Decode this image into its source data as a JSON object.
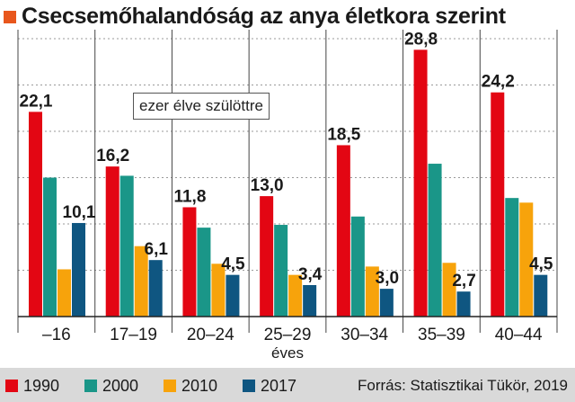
{
  "title": "Csecsemőhalandóság az anya életkora szerint",
  "unit_label": "ezer élve szülöttre",
  "source": "Forrás: Statisztikai Tükör, 2019",
  "chart_data": {
    "type": "bar",
    "title": "Csecsemőhalandóság az anya életkora szerint",
    "ylabel": "ezer élve szülöttre",
    "xlabel": "éves",
    "categories": [
      "–16",
      "17–19",
      "20–24",
      "25–29",
      "30–34",
      "35–39",
      "40–44"
    ],
    "ylim": [
      0,
      30
    ],
    "grid": true,
    "legend_position": "bottom",
    "series": [
      {
        "name": "1990",
        "color": "#e30613",
        "values": [
          22.1,
          16.2,
          11.8,
          13.0,
          18.5,
          28.8,
          24.2
        ],
        "labeled": true
      },
      {
        "name": "2000",
        "color": "#1a9688",
        "values": [
          15.0,
          15.2,
          9.6,
          9.9,
          10.8,
          16.5,
          12.8
        ],
        "labeled": false
      },
      {
        "name": "2010",
        "color": "#f7a30b",
        "values": [
          5.1,
          7.6,
          5.7,
          4.5,
          5.4,
          5.8,
          12.3
        ],
        "labeled": false
      },
      {
        "name": "2017",
        "color": "#0f5681",
        "values": [
          10.1,
          6.1,
          4.5,
          3.4,
          3.0,
          2.7,
          4.5
        ],
        "labeled": true
      }
    ],
    "data_labels": {
      "1990": [
        "22,1",
        "16,2",
        "11,8",
        "13,0",
        "18,5",
        "28,8",
        "24,2"
      ],
      "2017": [
        "10,1",
        "6,1",
        "4,5",
        "3,4",
        "3,0",
        "2,7",
        "4,5"
      ]
    }
  }
}
